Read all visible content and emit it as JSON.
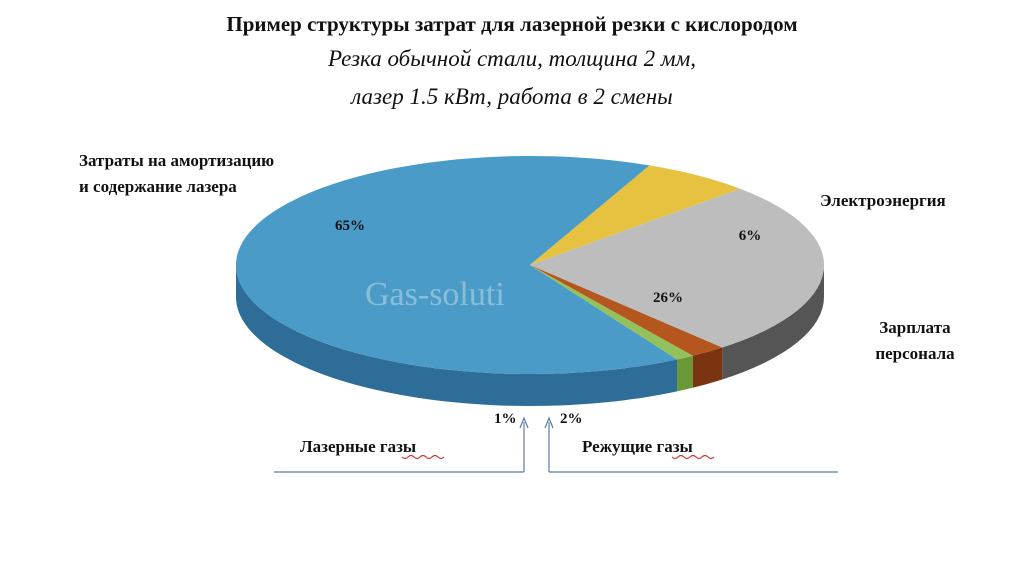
{
  "title": "Пример структуры затрат для лазерной резки с кислородом",
  "subtitle_line1": "Резка обычной стали, толщина 2 мм,",
  "subtitle_line2": "лазер 1.5 кВт, работа в 2 смены",
  "watermark": "Gas-soluti",
  "chart_data": {
    "type": "pie",
    "title": "Пример структуры затрат для лазерной резки с кислородом",
    "subtitle": "Резка обычной стали, толщина 2 мм, лазер 1.5 кВт, работа в 2 смены",
    "style": "3d",
    "slices": [
      {
        "label": "Затраты на амортизацию и содержание лазера",
        "label_lines": [
          "Затраты на амортизацию",
          "и содержание лазера"
        ],
        "value": 65,
        "value_label": "65%",
        "color": "#4a9bc8",
        "side_color": "#2e6d97"
      },
      {
        "label": "Электроэнергия",
        "label_lines": [
          "Электроэнергия"
        ],
        "value": 6,
        "value_label": "6%",
        "color": "#e6c240",
        "side_color": "#a8871f"
      },
      {
        "label": "Зарплата персонала",
        "label_lines": [
          "Зарплата",
          "персонала"
        ],
        "value": 26,
        "value_label": "26%",
        "color": "#bdbdbd",
        "side_color": "#555555"
      },
      {
        "label": "Режущие газы",
        "label_lines": [
          "Режущие газы"
        ],
        "value": 2,
        "value_label": "2%",
        "color": "#b5561e",
        "side_color": "#7a3510"
      },
      {
        "label": "Лазерные газы",
        "label_lines": [
          "Лазерные газы"
        ],
        "value": 1,
        "value_label": "1%",
        "color": "#93c25c",
        "side_color": "#6a9a38"
      }
    ]
  }
}
